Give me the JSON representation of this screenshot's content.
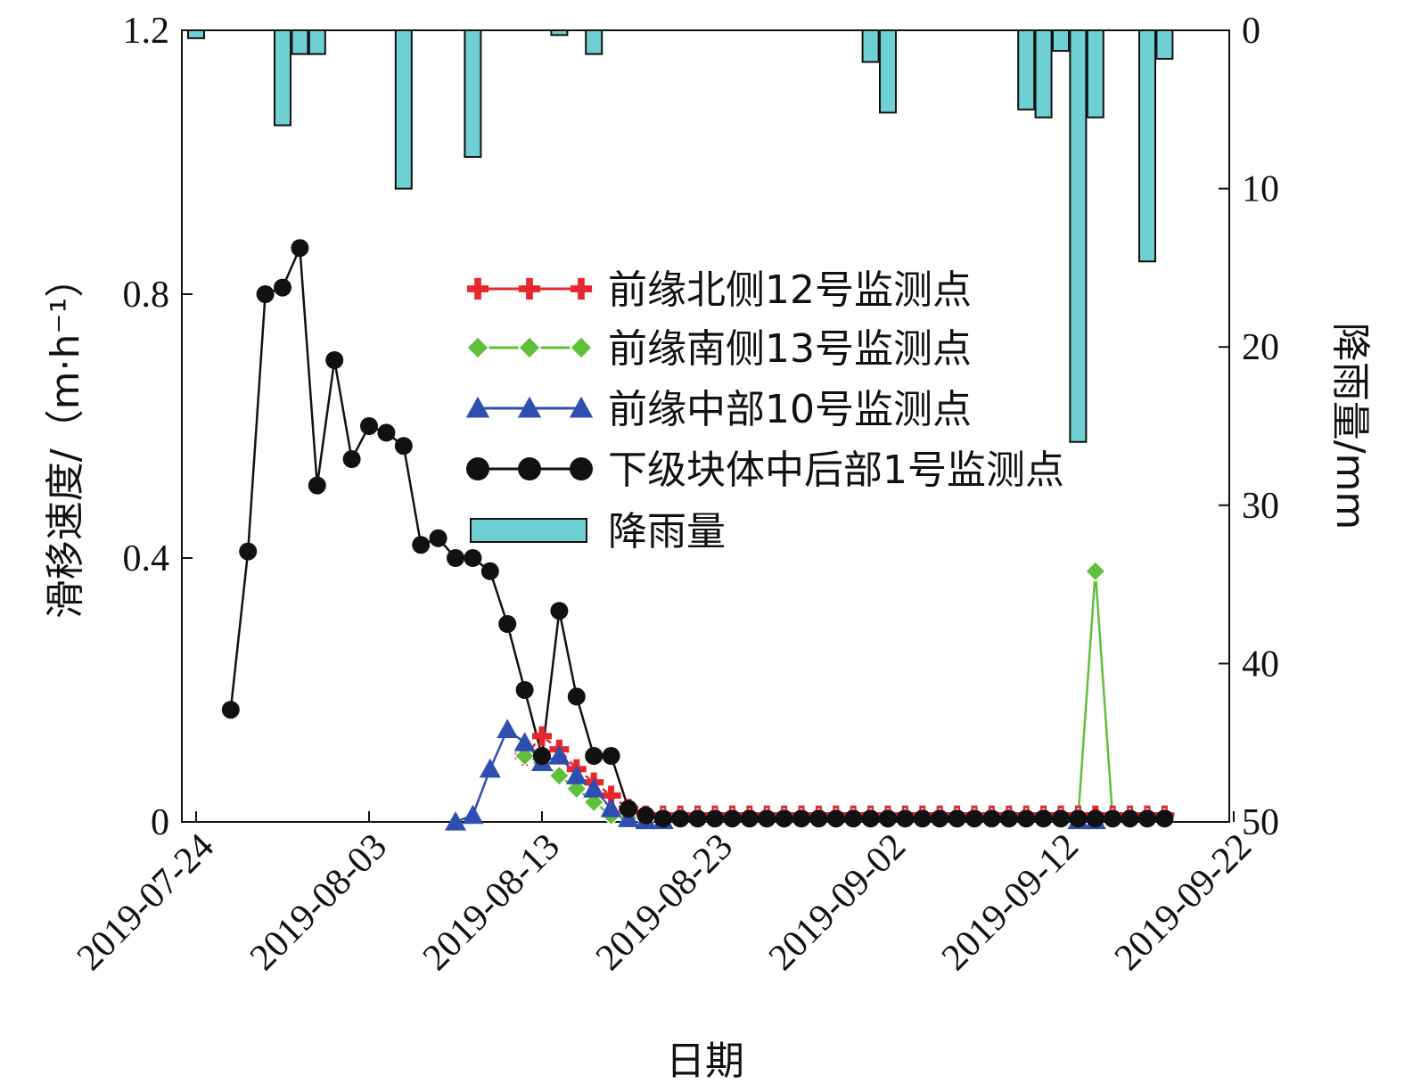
{
  "chart_data": {
    "type": "line",
    "title": "",
    "xlabel": "日期",
    "ylabel": "滑移速度/（m·h⁻¹）",
    "y2label": "降雨量/mm",
    "x_start": "2019-07-24",
    "x_ticks": [
      "2019-07-24",
      "2019-08-03",
      "2019-08-13",
      "2019-08-23",
      "2019-09-02",
      "2019-09-12",
      "2019-09-22"
    ],
    "xlim": [
      "2019-07-24",
      "2019-09-22"
    ],
    "ylim": [
      0,
      1.2
    ],
    "y_ticks": [
      0,
      0.4,
      0.8,
      1.2
    ],
    "y_tick_labels": [
      "0",
      "0.4",
      "0.8",
      "1.2"
    ],
    "y2lim": [
      0,
      50
    ],
    "y2_inverted": true,
    "y2_ticks": [
      0,
      10,
      20,
      30,
      40,
      50
    ],
    "y2_tick_labels": [
      "0",
      "10",
      "20",
      "30",
      "40",
      "50"
    ],
    "grid": false,
    "legend_position": "center",
    "series": [
      {
        "name": "前缘北侧12号监测点",
        "marker": "plus",
        "color": "#e8262b",
        "x": [
          "2019-08-12",
          "2019-08-13",
          "2019-08-14",
          "2019-08-15",
          "2019-08-16",
          "2019-08-17",
          "2019-08-18",
          "2019-08-19",
          "2019-08-20",
          "2019-08-21",
          "2019-08-22",
          "2019-08-23",
          "2019-08-24",
          "2019-08-25",
          "2019-08-26",
          "2019-08-27",
          "2019-08-28",
          "2019-08-29",
          "2019-08-30",
          "2019-08-31",
          "2019-09-01",
          "2019-09-02",
          "2019-09-03",
          "2019-09-04",
          "2019-09-05",
          "2019-09-06",
          "2019-09-07",
          "2019-09-08",
          "2019-09-09",
          "2019-09-10",
          "2019-09-11",
          "2019-09-12",
          "2019-09-13",
          "2019-09-14",
          "2019-09-15",
          "2019-09-16",
          "2019-09-17",
          "2019-09-18"
        ],
        "values": [
          0.1,
          0.13,
          0.11,
          0.08,
          0.06,
          0.04,
          0.02,
          0.01,
          0.01,
          0.01,
          0.01,
          0.01,
          0.01,
          0.01,
          0.01,
          0.01,
          0.01,
          0.01,
          0.01,
          0.01,
          0.01,
          0.01,
          0.01,
          0.01,
          0.01,
          0.01,
          0.01,
          0.01,
          0.01,
          0.01,
          0.01,
          0.01,
          0.01,
          0.01,
          0.01,
          0.01,
          0.01,
          0.01
        ]
      },
      {
        "name": "前缘南侧13号监测点",
        "marker": "diamond",
        "color": "#5fbf3a",
        "x": [
          "2019-08-12",
          "2019-08-13",
          "2019-08-14",
          "2019-08-15",
          "2019-08-16",
          "2019-08-17",
          "2019-08-18",
          "2019-08-19",
          "2019-08-20",
          "2019-08-21",
          "2019-08-22",
          "2019-08-23",
          "2019-08-24",
          "2019-08-25",
          "2019-08-26",
          "2019-08-27",
          "2019-08-28",
          "2019-08-29",
          "2019-08-30",
          "2019-08-31",
          "2019-09-01",
          "2019-09-02",
          "2019-09-03",
          "2019-09-04",
          "2019-09-05",
          "2019-09-06",
          "2019-09-07",
          "2019-09-08",
          "2019-09-09",
          "2019-09-10",
          "2019-09-11",
          "2019-09-12",
          "2019-09-13",
          "2019-09-14",
          "2019-09-15",
          "2019-09-16",
          "2019-09-17",
          "2019-09-18"
        ],
        "values": [
          0.1,
          0.09,
          0.07,
          0.05,
          0.03,
          0.01,
          0.005,
          0.005,
          0.005,
          0.005,
          0.005,
          0.005,
          0.005,
          0.005,
          0.005,
          0.005,
          0.005,
          0.005,
          0.005,
          0.005,
          0.005,
          0.005,
          0.005,
          0.005,
          0.005,
          0.005,
          0.005,
          0.005,
          0.005,
          0.005,
          0.005,
          0.005,
          0.005,
          0.38,
          0.005,
          0.005,
          0.005,
          0.005
        ]
      },
      {
        "name": "前缘中部10号监测点",
        "marker": "triangle",
        "color": "#2f4fb0",
        "x": [
          "2019-08-08",
          "2019-08-09",
          "2019-08-10",
          "2019-08-11",
          "2019-08-12",
          "2019-08-13",
          "2019-08-14",
          "2019-08-15",
          "2019-08-16",
          "2019-08-17",
          "2019-08-18",
          "2019-08-19",
          "2019-08-20",
          "2019-09-13",
          "2019-09-14"
        ],
        "values": [
          0,
          0.01,
          0.08,
          0.14,
          0.12,
          0.09,
          0.1,
          0.07,
          0.05,
          0.02,
          0.005,
          0.002,
          0.002,
          0.002,
          0.002
        ]
      },
      {
        "name": "下级块体中后部1号监测点",
        "marker": "circle",
        "color": "#111111",
        "x": [
          "2019-07-26",
          "2019-07-27",
          "2019-07-28",
          "2019-07-29",
          "2019-07-30",
          "2019-07-31",
          "2019-08-01",
          "2019-08-02",
          "2019-08-03",
          "2019-08-04",
          "2019-08-05",
          "2019-08-06",
          "2019-08-07",
          "2019-08-08",
          "2019-08-09",
          "2019-08-10",
          "2019-08-11",
          "2019-08-12",
          "2019-08-13",
          "2019-08-14",
          "2019-08-15",
          "2019-08-16",
          "2019-08-17",
          "2019-08-18",
          "2019-08-19",
          "2019-08-20",
          "2019-08-21",
          "2019-08-22",
          "2019-08-23",
          "2019-08-24",
          "2019-08-25",
          "2019-08-26",
          "2019-08-27",
          "2019-08-28",
          "2019-08-29",
          "2019-08-30",
          "2019-08-31",
          "2019-09-01",
          "2019-09-02",
          "2019-09-03",
          "2019-09-04",
          "2019-09-05",
          "2019-09-06",
          "2019-09-07",
          "2019-09-08",
          "2019-09-09",
          "2019-09-10",
          "2019-09-11",
          "2019-09-12",
          "2019-09-13",
          "2019-09-14",
          "2019-09-15",
          "2019-09-16",
          "2019-09-17",
          "2019-09-18"
        ],
        "values": [
          0.17,
          0.41,
          0.8,
          0.81,
          0.87,
          0.51,
          0.7,
          0.55,
          0.6,
          0.59,
          0.57,
          0.42,
          0.43,
          0.4,
          0.4,
          0.38,
          0.3,
          0.2,
          0.1,
          0.32,
          0.19,
          0.1,
          0.1,
          0.02,
          0.01,
          0.005,
          0.005,
          0.005,
          0.005,
          0.005,
          0.005,
          0.005,
          0.005,
          0.005,
          0.005,
          0.005,
          0.005,
          0.005,
          0.005,
          0.005,
          0.005,
          0.005,
          0.005,
          0.005,
          0.005,
          0.005,
          0.005,
          0.005,
          0.005,
          0.005,
          0.005,
          0.005,
          0.005,
          0.005,
          0.005
        ]
      }
    ],
    "rainfall": {
      "name": "降雨量",
      "color": "#6fd0d3",
      "x": [
        "2019-07-24",
        "2019-07-29",
        "2019-07-30",
        "2019-07-31",
        "2019-08-05",
        "2019-08-09",
        "2019-08-14",
        "2019-08-16",
        "2019-09-01",
        "2019-09-02",
        "2019-09-10",
        "2019-09-11",
        "2019-09-12",
        "2019-09-13",
        "2019-09-14",
        "2019-09-17",
        "2019-09-18"
      ],
      "values": [
        0.5,
        6.0,
        1.5,
        1.5,
        10.0,
        8.0,
        0.3,
        1.5,
        2.0,
        5.2,
        5.0,
        5.5,
        1.3,
        26.0,
        5.5,
        14.6,
        1.8
      ]
    }
  }
}
